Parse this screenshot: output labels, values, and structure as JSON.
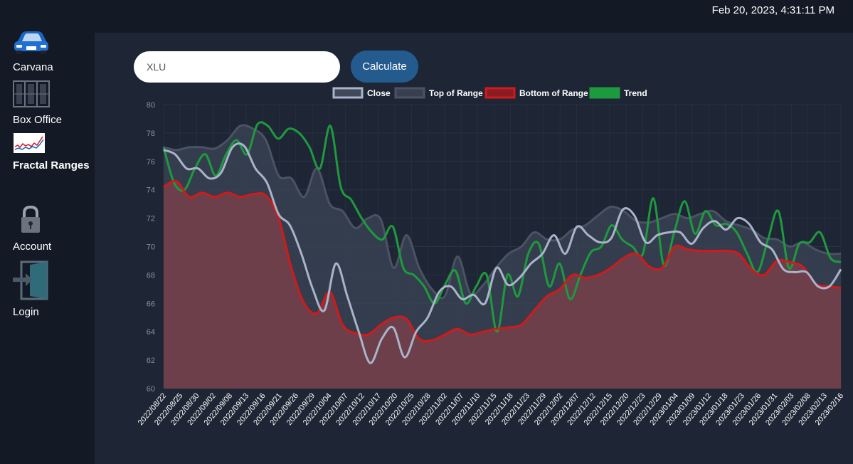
{
  "header": {
    "datetime": "Feb 20, 2023, 4:31:11 PM"
  },
  "sidebar": {
    "items": [
      {
        "label": "Carvana",
        "icon": "car-icon",
        "active": false
      },
      {
        "label": "Box Office",
        "icon": "film-strip-icon",
        "active": false
      },
      {
        "label": "Fractal Ranges",
        "icon": "stock-chart-icon",
        "active": true
      },
      {
        "label": "Account",
        "icon": "lock-icon",
        "active": false
      },
      {
        "label": "Login",
        "icon": "login-door-icon",
        "active": false
      }
    ]
  },
  "search": {
    "value": "XLU",
    "button_label": "Calculate"
  },
  "colors": {
    "close": "#a9b3c9",
    "top": "#4a5263",
    "bottom": "#d11a1a",
    "trend": "#1e9a3e",
    "bottom_fill": "#6c3f4b",
    "band_fill": "#3c4655"
  },
  "chart_data": {
    "type": "line",
    "title": "",
    "xlabel": "",
    "ylabel": "",
    "ylim": [
      60,
      80
    ],
    "yticks": [
      60,
      62,
      64,
      66,
      68,
      70,
      72,
      74,
      76,
      78,
      80
    ],
    "legend": {
      "position": "top",
      "entries": [
        "Close",
        "Top of Range",
        "Bottom of Range",
        "Trend"
      ]
    },
    "x_tick_labels": [
      "2022/08/22",
      "2022/08/25",
      "2022/08/30",
      "2022/09/02",
      "2022/09/08",
      "2022/09/13",
      "2022/09/16",
      "2022/09/21",
      "2022/09/26",
      "2022/09/29",
      "2022/10/04",
      "2022/10/07",
      "2022/10/12",
      "2022/10/17",
      "2022/10/20",
      "2022/10/25",
      "2022/10/28",
      "2022/11/02",
      "2022/11/07",
      "2022/11/10",
      "2022/11/15",
      "2022/11/18",
      "2022/11/23",
      "2022/11/29",
      "2022/12/02",
      "2022/12/07",
      "2022/12/12",
      "2022/12/15",
      "2022/12/20",
      "2022/12/23",
      "2022/12/29",
      "2023/01/04",
      "2023/01/09",
      "2023/01/12",
      "2023/01/18",
      "2023/01/23",
      "2023/01/26",
      "2023/01/31",
      "2023/02/03",
      "2023/02/08",
      "2023/02/13",
      "2023/02/16"
    ],
    "series": [
      {
        "name": "Close",
        "values": [
          76.8,
          76.5,
          75.5,
          75.5,
          74.8,
          75.2,
          77.0,
          77.1,
          75.5,
          74.5,
          72.3,
          71.5,
          69.5,
          67.0,
          65.5,
          68.8,
          66.5,
          64.0,
          61.8,
          63.5,
          64.3,
          62.2,
          64.0,
          65.0,
          66.8,
          67.2,
          66.3,
          66.6,
          66.0,
          68.5,
          67.3,
          67.8,
          68.8,
          69.5,
          70.8,
          69.5,
          71.4,
          70.8,
          70.3,
          70.6,
          72.6,
          72.2,
          70.3,
          70.8,
          71.0,
          71.0,
          70.2,
          71.3,
          71.8,
          71.2,
          72.0,
          71.6,
          70.3,
          69.8,
          68.4,
          68.2,
          68.2,
          67.2,
          67.2,
          68.4
        ]
      },
      {
        "name": "Top of Range",
        "values": [
          77.0,
          76.8,
          77.0,
          77.0,
          76.9,
          77.5,
          78.5,
          78.3,
          77.5,
          75.0,
          74.8,
          73.5,
          75.5,
          73.0,
          72.5,
          71.3,
          72.0,
          71.9,
          68.5,
          70.8,
          68.5,
          67.0,
          66.5,
          69.3,
          66.7,
          67.3,
          68.5,
          69.5,
          70.0,
          71.0,
          70.5,
          70.5,
          71.2,
          71.5,
          72.2,
          72.8,
          72.5,
          71.8,
          71.7,
          72.0,
          72.3,
          72.0,
          72.3,
          72.5,
          71.8,
          71.5,
          71.2,
          70.6,
          70.5,
          70.0,
          70.3,
          69.8,
          69.5,
          69.5
        ]
      },
      {
        "name": "Bottom of Range",
        "values": [
          74.2,
          74.6,
          73.5,
          73.8,
          73.5,
          73.8,
          73.5,
          73.7,
          73.6,
          72.0,
          68.5,
          66.0,
          65.3,
          66.8,
          64.5,
          63.9,
          63.8,
          64.5,
          65.0,
          64.9,
          63.5,
          63.4,
          63.8,
          64.2,
          63.8,
          64.0,
          64.2,
          64.3,
          64.5,
          65.5,
          66.5,
          67.0,
          68.0,
          67.8,
          68.0,
          68.5,
          69.2,
          69.5,
          68.6,
          68.5,
          70.0,
          69.8,
          69.7,
          69.7,
          69.7,
          69.5,
          68.4,
          68.0,
          69.0,
          68.9,
          68.6,
          67.4,
          67.2,
          67.1
        ]
      },
      {
        "name": "Trend",
        "values": [
          77.0,
          74.5,
          74.0,
          75.5,
          76.5,
          75.0,
          76.5,
          77.5,
          76.5,
          78.6,
          78.5,
          77.6,
          78.3,
          78.0,
          77.0,
          75.5,
          78.5,
          74.2,
          73.3,
          72.0,
          71.0,
          70.5,
          71.4,
          68.5,
          68.0,
          67.2,
          66.0,
          67.3,
          68.3,
          66.0,
          67.2,
          68.0,
          64.0,
          68.0,
          66.5,
          69.5,
          70.2,
          67.2,
          68.8,
          66.3,
          68.0,
          69.6,
          70.0,
          71.5,
          70.5,
          70.0,
          69.5,
          73.4,
          68.7,
          71.0,
          73.2,
          70.9,
          72.5,
          71.5,
          71.6,
          71.0,
          69.5,
          68.2,
          70.5,
          72.5,
          68.5,
          70.2,
          70.3,
          71.0,
          69.2,
          68.9
        ]
      }
    ]
  }
}
